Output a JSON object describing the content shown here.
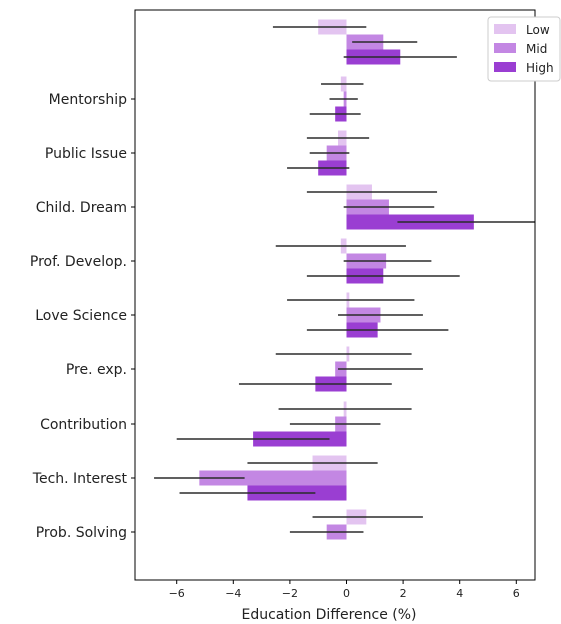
{
  "chart_data": {
    "type": "bar",
    "orientation": "horizontal",
    "xlabel": "Education Difference (%)",
    "ylabel": "",
    "title": "",
    "xlim": [
      -7.6,
      7.6
    ],
    "xticks": [
      -6,
      -4,
      -2,
      0,
      2,
      4,
      6
    ],
    "xtick_labels": [
      "−6",
      "−4",
      "−2",
      "0",
      "2",
      "4",
      "6"
    ],
    "grid": false,
    "legend_position": "top-right",
    "categories": [
      "Mentorship",
      "Public Issue",
      "Child. Dream",
      "Prof. Develop.",
      "Love Science",
      "Pre. exp.",
      "Contribution",
      "Tech. Interest",
      "Prob. Solving"
    ],
    "extra_group_index": 0,
    "series": [
      {
        "name": "Low",
        "color": "#e3c4f0",
        "extra_group": {
          "value": -1.0,
          "err_lo": -2.6,
          "err_hi": 0.7
        },
        "values": [
          -0.2,
          -0.3,
          0.9,
          -0.2,
          0.1,
          0.1,
          -0.1,
          -1.2,
          0.7
        ],
        "err_lo": [
          -0.9,
          -1.4,
          -1.4,
          -2.5,
          -2.1,
          -2.5,
          -2.4,
          -3.5,
          -1.2
        ],
        "err_hi": [
          0.6,
          0.8,
          3.2,
          2.1,
          2.4,
          2.3,
          2.3,
          1.1,
          2.7
        ]
      },
      {
        "name": "Mid",
        "color": "#c387e3",
        "extra_group": {
          "value": 1.3,
          "err_lo": 0.2,
          "err_hi": 2.5
        },
        "values": [
          -0.1,
          -0.7,
          1.5,
          1.4,
          1.2,
          -0.4,
          -0.4,
          -5.2,
          -0.7
        ],
        "err_lo": [
          -0.6,
          -1.3,
          -0.1,
          -0.1,
          -0.3,
          -0.3,
          -2.0,
          -6.8,
          -2.0
        ],
        "err_hi": [
          0.4,
          0.1,
          3.1,
          3.0,
          2.7,
          2.7,
          1.2,
          -3.6,
          0.6
        ]
      },
      {
        "name": "High",
        "color": "#9a3ed2",
        "extra_group": {
          "value": 1.9,
          "err_lo": -0.1,
          "err_hi": 3.9
        },
        "values": [
          -0.4,
          -1.0,
          4.5,
          1.3,
          1.1,
          -1.1,
          -3.3,
          -3.5,
          null
        ],
        "err_lo": [
          -1.3,
          -2.1,
          1.8,
          -1.4,
          -1.4,
          -3.8,
          -6.0,
          -5.9,
          null
        ],
        "err_hi": [
          0.5,
          0.1,
          7.3,
          4.0,
          3.6,
          1.6,
          -0.6,
          -1.1,
          null
        ]
      }
    ]
  }
}
